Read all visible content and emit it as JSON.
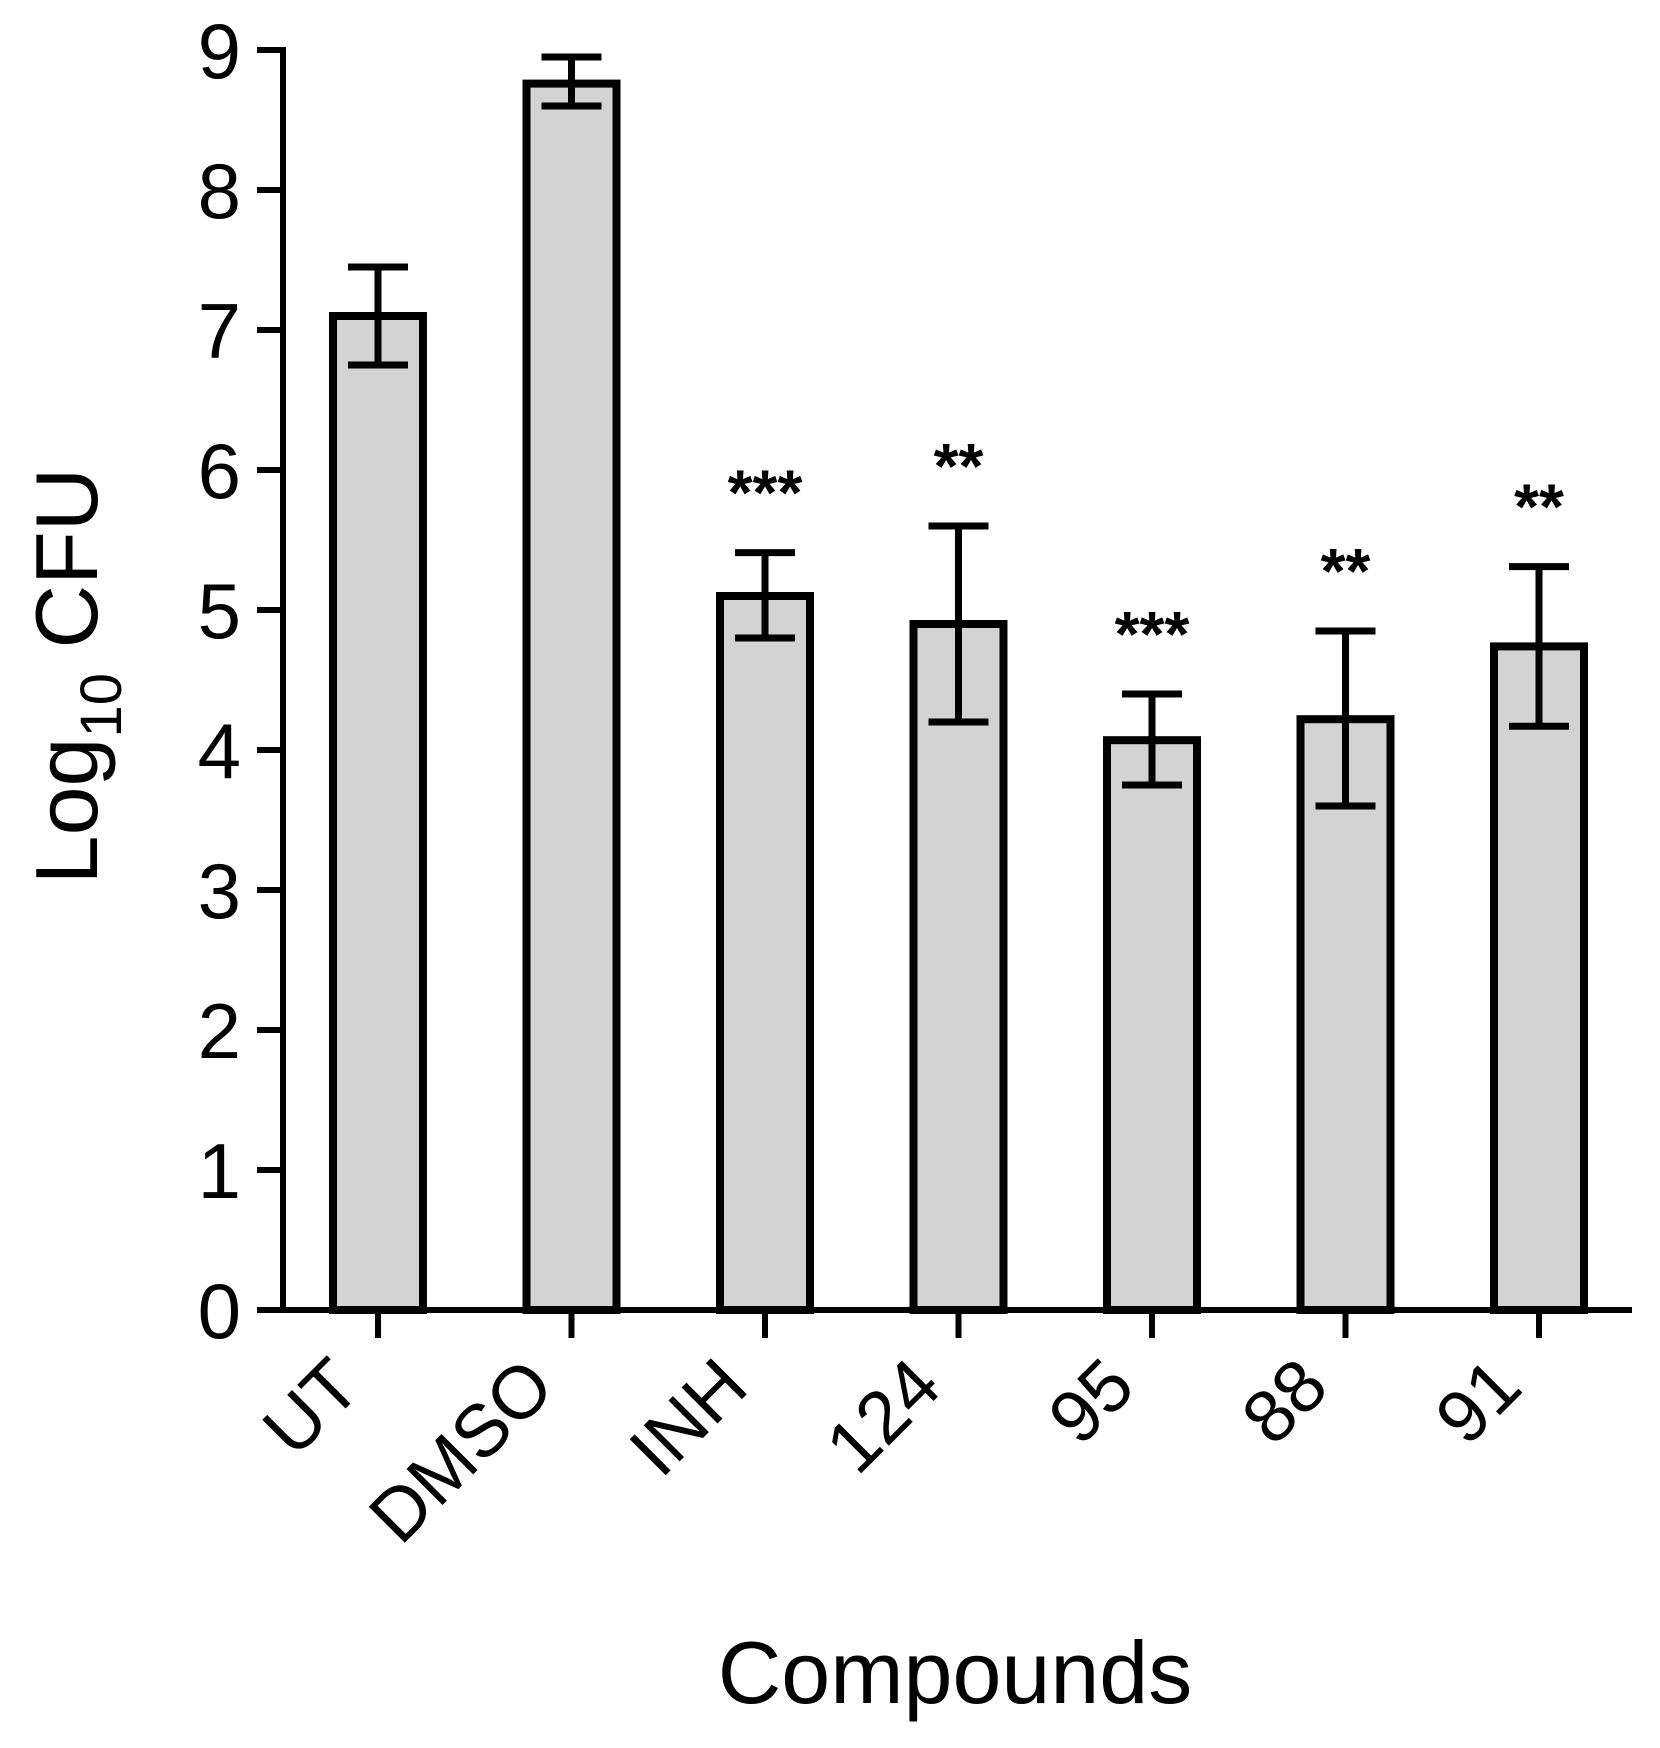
{
  "chart_data": {
    "type": "bar",
    "title": "",
    "xlabel": "Compounds",
    "ylabel": {
      "base": "Log",
      "subscript": "10",
      "rest": " CFU"
    },
    "ylim": [
      0,
      9
    ],
    "yticks": [
      0,
      1,
      2,
      3,
      4,
      5,
      6,
      7,
      8,
      9
    ],
    "categories": [
      "UT",
      "DMSO",
      "INH",
      "124",
      "95",
      "88",
      "91"
    ],
    "values": [
      7.1,
      8.76,
      5.1,
      4.9,
      4.07,
      4.22,
      4.74
    ],
    "error_low": [
      6.75,
      8.6,
      4.8,
      4.2,
      3.75,
      3.6,
      4.17
    ],
    "error_high": [
      7.45,
      8.95,
      5.41,
      5.6,
      4.4,
      4.85,
      5.31
    ],
    "significance": [
      "",
      "",
      "***",
      "**",
      "***",
      "**",
      "**"
    ],
    "bar_color": "#d3d3d3",
    "stroke_color": "#000000",
    "grid": false,
    "legend": "none"
  }
}
